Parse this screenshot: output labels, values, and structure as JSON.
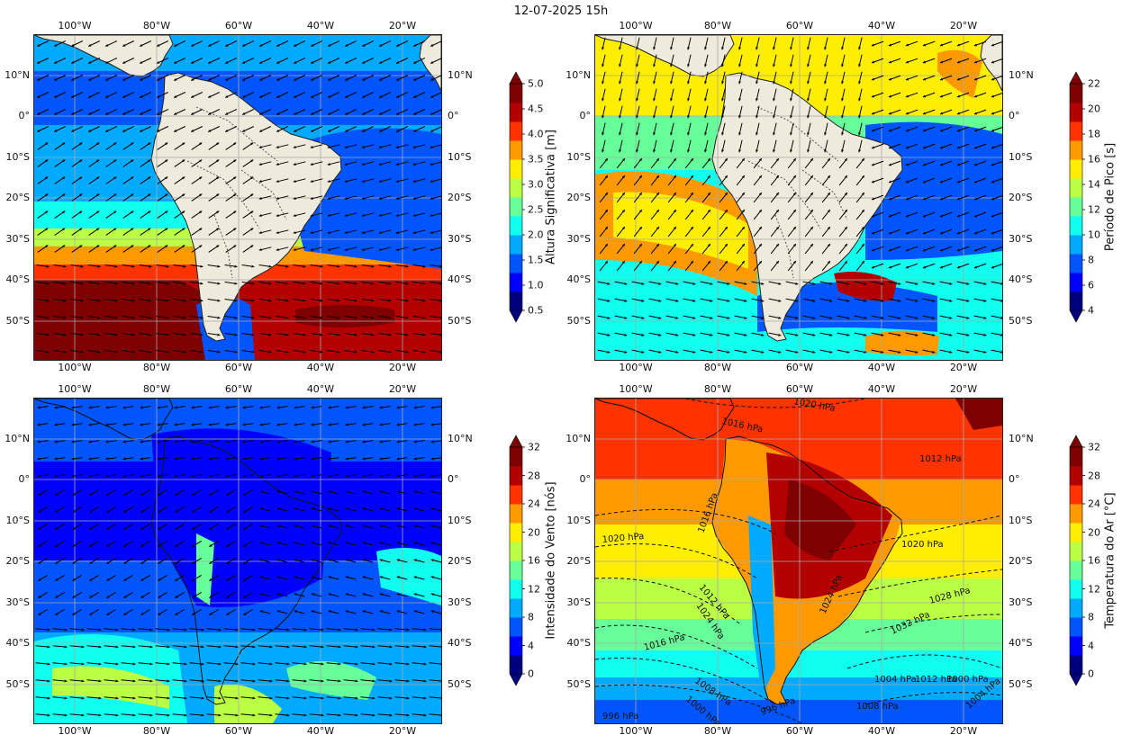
{
  "title": "12-07-2025 15h",
  "lon_ticks": [
    "100°W",
    "80°W",
    "60°W",
    "40°W",
    "20°W"
  ],
  "lat_ticks": [
    "10°N",
    "0°",
    "10°S",
    "20°S",
    "30°S",
    "40°S",
    "50°S"
  ],
  "panels": [
    {
      "id": "wave-height",
      "colorbar": {
        "label": "Altura Significativa [m]",
        "ticks": [
          "0.5",
          "1.0",
          "1.5",
          "2.0",
          "2.5",
          "3.0",
          "3.5",
          "4.0",
          "4.5",
          "5.0"
        ]
      }
    },
    {
      "id": "peak-period",
      "colorbar": {
        "label": "Período de Pico [s]",
        "ticks": [
          "4",
          "6",
          "8",
          "10",
          "12",
          "14",
          "16",
          "18",
          "20",
          "22"
        ]
      }
    },
    {
      "id": "wind-speed",
      "colorbar": {
        "label": "Intensidade do Vento [nós]",
        "ticks": [
          "0",
          "4",
          "8",
          "12",
          "16",
          "20",
          "24",
          "28",
          "32"
        ]
      }
    },
    {
      "id": "air-temperature",
      "colorbar": {
        "label": "Temperatura do Ar [°C]",
        "ticks": [
          "0",
          "4",
          "8",
          "12",
          "16",
          "20",
          "24",
          "28",
          "32"
        ]
      },
      "isobar_labels": [
        "1020 hPa",
        "1016 hPa",
        "1012 hPa",
        "1016 hPa",
        "1020 hPa",
        "1012 hPa",
        "1020 hPa",
        "1024 hPa",
        "1024 hPa",
        "1028 hPa",
        "1032 hPa",
        "1016 hPa",
        "1008 hPa",
        "1004 hPa",
        "1000 hPa",
        "1012 hPa",
        "1008 hPa",
        "996 hPa",
        "996 hPa",
        "1000 hPa",
        "1004 hPa"
      ]
    }
  ],
  "colors": {
    "land": "#efebdc",
    "jet": [
      "#00007f",
      "#0000ff",
      "#0055ff",
      "#00aaff",
      "#11ffee",
      "#66ff99",
      "#bbff44",
      "#ffee00",
      "#ff9900",
      "#ff3300",
      "#b30000",
      "#7f0000"
    ]
  }
}
